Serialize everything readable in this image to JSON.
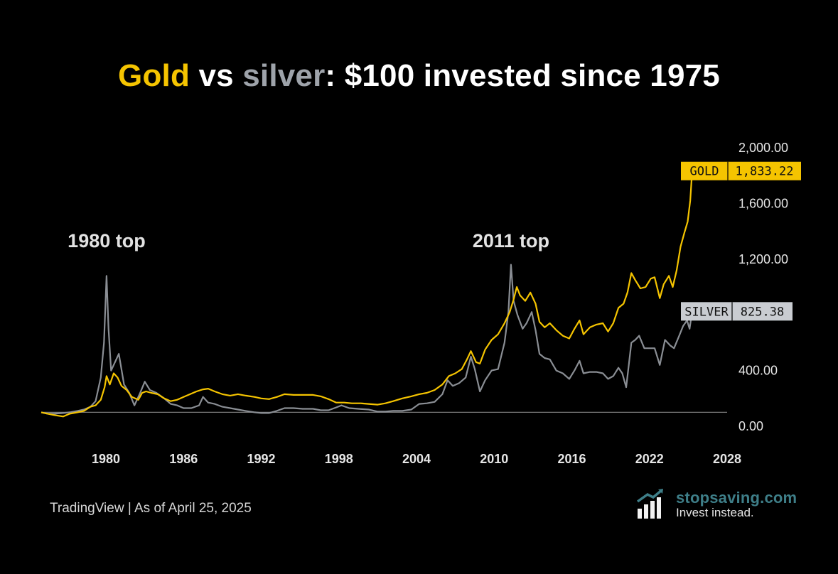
{
  "title": {
    "gold_word": "Gold",
    "middle": " vs ",
    "silver_word": "silver",
    "rest": ": $100 invested since 1975"
  },
  "footer": {
    "source": "TradingView | As of April 25, 2025"
  },
  "brand": {
    "name": "stopsaving.com",
    "tagline": "Invest instead.",
    "icon": "bar-chart-growth-icon"
  },
  "colors": {
    "gold": "#F5C400",
    "silver": "#8A8E94",
    "silver_label_bg": "#C9CCD1",
    "background": "#000000",
    "axis_text": "#E6E6E6"
  },
  "chart_data": {
    "type": "line",
    "title": "Gold vs silver: $100 invested since 1975",
    "xlabel": "",
    "ylabel": "",
    "xlim": [
      1975,
      2028
    ],
    "ylim": [
      0,
      2000
    ],
    "x_ticks": [
      "1980",
      "1986",
      "1992",
      "1998",
      "2004",
      "2010",
      "2016",
      "2022",
      "2028"
    ],
    "y_ticks": [
      "0.00",
      "400.00",
      "1,200.00",
      "1,600.00",
      "2,000.00"
    ],
    "grid": false,
    "baseline_value": 100,
    "annotations": [
      {
        "text": "1980 top",
        "x": 1980.05
      },
      {
        "text": "2011 top",
        "x": 2011.3
      }
    ],
    "series": [
      {
        "name": "GOLD",
        "last_label": "1,833.22",
        "color": "#F5C400",
        "points": [
          [
            1975.0,
            100
          ],
          [
            1975.5,
            90
          ],
          [
            1976.0,
            80
          ],
          [
            1976.7,
            70
          ],
          [
            1977.2,
            90
          ],
          [
            1977.8,
            100
          ],
          [
            1978.3,
            110
          ],
          [
            1978.8,
            140
          ],
          [
            1979.2,
            150
          ],
          [
            1979.6,
            190
          ],
          [
            1979.9,
            280
          ],
          [
            1980.05,
            360
          ],
          [
            1980.3,
            300
          ],
          [
            1980.6,
            380
          ],
          [
            1980.9,
            350
          ],
          [
            1981.2,
            290
          ],
          [
            1981.6,
            260
          ],
          [
            1982.0,
            210
          ],
          [
            1982.5,
            190
          ],
          [
            1982.8,
            240
          ],
          [
            1983.1,
            250
          ],
          [
            1983.5,
            240
          ],
          [
            1984.0,
            230
          ],
          [
            1984.5,
            200
          ],
          [
            1985.0,
            180
          ],
          [
            1985.5,
            190
          ],
          [
            1986.0,
            210
          ],
          [
            1986.5,
            230
          ],
          [
            1987.0,
            250
          ],
          [
            1987.5,
            265
          ],
          [
            1987.9,
            270
          ],
          [
            1988.4,
            250
          ],
          [
            1989.0,
            230
          ],
          [
            1989.6,
            220
          ],
          [
            1990.2,
            230
          ],
          [
            1990.8,
            220
          ],
          [
            1991.5,
            210
          ],
          [
            1992.0,
            200
          ],
          [
            1992.6,
            195
          ],
          [
            1993.2,
            210
          ],
          [
            1993.8,
            230
          ],
          [
            1994.5,
            225
          ],
          [
            1995.2,
            225
          ],
          [
            1996.0,
            225
          ],
          [
            1996.6,
            215
          ],
          [
            1997.2,
            195
          ],
          [
            1997.8,
            170
          ],
          [
            1998.4,
            170
          ],
          [
            1999.0,
            165
          ],
          [
            1999.7,
            165
          ],
          [
            2000.3,
            160
          ],
          [
            2001.0,
            155
          ],
          [
            2001.6,
            165
          ],
          [
            2002.2,
            180
          ],
          [
            2002.9,
            200
          ],
          [
            2003.6,
            215
          ],
          [
            2004.2,
            230
          ],
          [
            2004.8,
            240
          ],
          [
            2005.4,
            260
          ],
          [
            2006.0,
            300
          ],
          [
            2006.5,
            360
          ],
          [
            2007.0,
            380
          ],
          [
            2007.5,
            410
          ],
          [
            2007.9,
            480
          ],
          [
            2008.2,
            540
          ],
          [
            2008.6,
            460
          ],
          [
            2008.9,
            450
          ],
          [
            2009.3,
            550
          ],
          [
            2009.8,
            620
          ],
          [
            2010.3,
            660
          ],
          [
            2010.8,
            740
          ],
          [
            2011.2,
            820
          ],
          [
            2011.5,
            910
          ],
          [
            2011.75,
            1000
          ],
          [
            2012.0,
            940
          ],
          [
            2012.4,
            900
          ],
          [
            2012.8,
            960
          ],
          [
            2013.2,
            880
          ],
          [
            2013.5,
            750
          ],
          [
            2013.9,
            710
          ],
          [
            2014.3,
            740
          ],
          [
            2014.8,
            690
          ],
          [
            2015.3,
            650
          ],
          [
            2015.8,
            630
          ],
          [
            2016.2,
            700
          ],
          [
            2016.6,
            760
          ],
          [
            2016.9,
            660
          ],
          [
            2017.4,
            710
          ],
          [
            2017.9,
            730
          ],
          [
            2018.4,
            740
          ],
          [
            2018.8,
            680
          ],
          [
            2019.2,
            740
          ],
          [
            2019.6,
            850
          ],
          [
            2020.0,
            880
          ],
          [
            2020.3,
            960
          ],
          [
            2020.6,
            1100
          ],
          [
            2020.9,
            1050
          ],
          [
            2021.3,
            990
          ],
          [
            2021.7,
            1000
          ],
          [
            2022.1,
            1060
          ],
          [
            2022.4,
            1070
          ],
          [
            2022.8,
            920
          ],
          [
            2023.1,
            1020
          ],
          [
            2023.5,
            1080
          ],
          [
            2023.8,
            1000
          ],
          [
            2024.1,
            1120
          ],
          [
            2024.4,
            1290
          ],
          [
            2024.7,
            1390
          ],
          [
            2024.95,
            1470
          ],
          [
            2025.15,
            1620
          ],
          [
            2025.3,
            1833
          ]
        ]
      },
      {
        "name": "SILVER",
        "last_label": "825.38",
        "color": "#8A8E94",
        "points": [
          [
            1975.0,
            100
          ],
          [
            1975.5,
            90
          ],
          [
            1976.0,
            90
          ],
          [
            1976.7,
            95
          ],
          [
            1977.2,
            100
          ],
          [
            1977.8,
            110
          ],
          [
            1978.3,
            120
          ],
          [
            1978.8,
            140
          ],
          [
            1979.2,
            180
          ],
          [
            1979.6,
            350
          ],
          [
            1979.85,
            600
          ],
          [
            1980.05,
            1080
          ],
          [
            1980.2,
            700
          ],
          [
            1980.4,
            400
          ],
          [
            1980.7,
            460
          ],
          [
            1981.0,
            520
          ],
          [
            1981.4,
            300
          ],
          [
            1981.8,
            240
          ],
          [
            1982.2,
            150
          ],
          [
            1982.6,
            230
          ],
          [
            1983.0,
            320
          ],
          [
            1983.4,
            260
          ],
          [
            1983.9,
            240
          ],
          [
            1984.5,
            200
          ],
          [
            1985.0,
            160
          ],
          [
            1985.5,
            150
          ],
          [
            1986.0,
            130
          ],
          [
            1986.6,
            130
          ],
          [
            1987.2,
            150
          ],
          [
            1987.5,
            210
          ],
          [
            1987.9,
            170
          ],
          [
            1988.4,
            160
          ],
          [
            1989.0,
            140
          ],
          [
            1989.6,
            130
          ],
          [
            1990.2,
            120
          ],
          [
            1990.8,
            110
          ],
          [
            1991.5,
            100
          ],
          [
            1992.0,
            95
          ],
          [
            1992.6,
            95
          ],
          [
            1993.2,
            110
          ],
          [
            1993.8,
            130
          ],
          [
            1994.5,
            130
          ],
          [
            1995.2,
            125
          ],
          [
            1996.0,
            125
          ],
          [
            1996.6,
            115
          ],
          [
            1997.2,
            115
          ],
          [
            1997.8,
            135
          ],
          [
            1998.2,
            150
          ],
          [
            1998.8,
            130
          ],
          [
            1999.5,
            125
          ],
          [
            2000.3,
            120
          ],
          [
            2001.0,
            105
          ],
          [
            2001.6,
            105
          ],
          [
            2002.2,
            110
          ],
          [
            2002.9,
            110
          ],
          [
            2003.6,
            120
          ],
          [
            2004.2,
            160
          ],
          [
            2004.8,
            165
          ],
          [
            2005.4,
            175
          ],
          [
            2006.0,
            230
          ],
          [
            2006.4,
            330
          ],
          [
            2006.8,
            290
          ],
          [
            2007.3,
            310
          ],
          [
            2007.8,
            350
          ],
          [
            2008.2,
            500
          ],
          [
            2008.5,
            410
          ],
          [
            2008.9,
            250
          ],
          [
            2009.3,
            330
          ],
          [
            2009.8,
            400
          ],
          [
            2010.3,
            410
          ],
          [
            2010.8,
            600
          ],
          [
            2011.1,
            820
          ],
          [
            2011.3,
            1160
          ],
          [
            2011.5,
            900
          ],
          [
            2011.8,
            800
          ],
          [
            2012.2,
            700
          ],
          [
            2012.5,
            740
          ],
          [
            2012.9,
            820
          ],
          [
            2013.2,
            690
          ],
          [
            2013.5,
            520
          ],
          [
            2013.9,
            490
          ],
          [
            2014.3,
            480
          ],
          [
            2014.8,
            400
          ],
          [
            2015.3,
            380
          ],
          [
            2015.8,
            340
          ],
          [
            2016.2,
            400
          ],
          [
            2016.6,
            470
          ],
          [
            2016.9,
            380
          ],
          [
            2017.4,
            390
          ],
          [
            2017.9,
            390
          ],
          [
            2018.4,
            380
          ],
          [
            2018.8,
            340
          ],
          [
            2019.2,
            360
          ],
          [
            2019.6,
            420
          ],
          [
            2019.9,
            380
          ],
          [
            2020.2,
            280
          ],
          [
            2020.6,
            600
          ],
          [
            2020.9,
            620
          ],
          [
            2021.2,
            650
          ],
          [
            2021.6,
            560
          ],
          [
            2022.0,
            560
          ],
          [
            2022.4,
            560
          ],
          [
            2022.8,
            440
          ],
          [
            2023.2,
            620
          ],
          [
            2023.6,
            580
          ],
          [
            2023.9,
            560
          ],
          [
            2024.3,
            650
          ],
          [
            2024.6,
            720
          ],
          [
            2024.9,
            760
          ],
          [
            2025.1,
            700
          ],
          [
            2025.3,
            825
          ]
        ]
      }
    ]
  }
}
